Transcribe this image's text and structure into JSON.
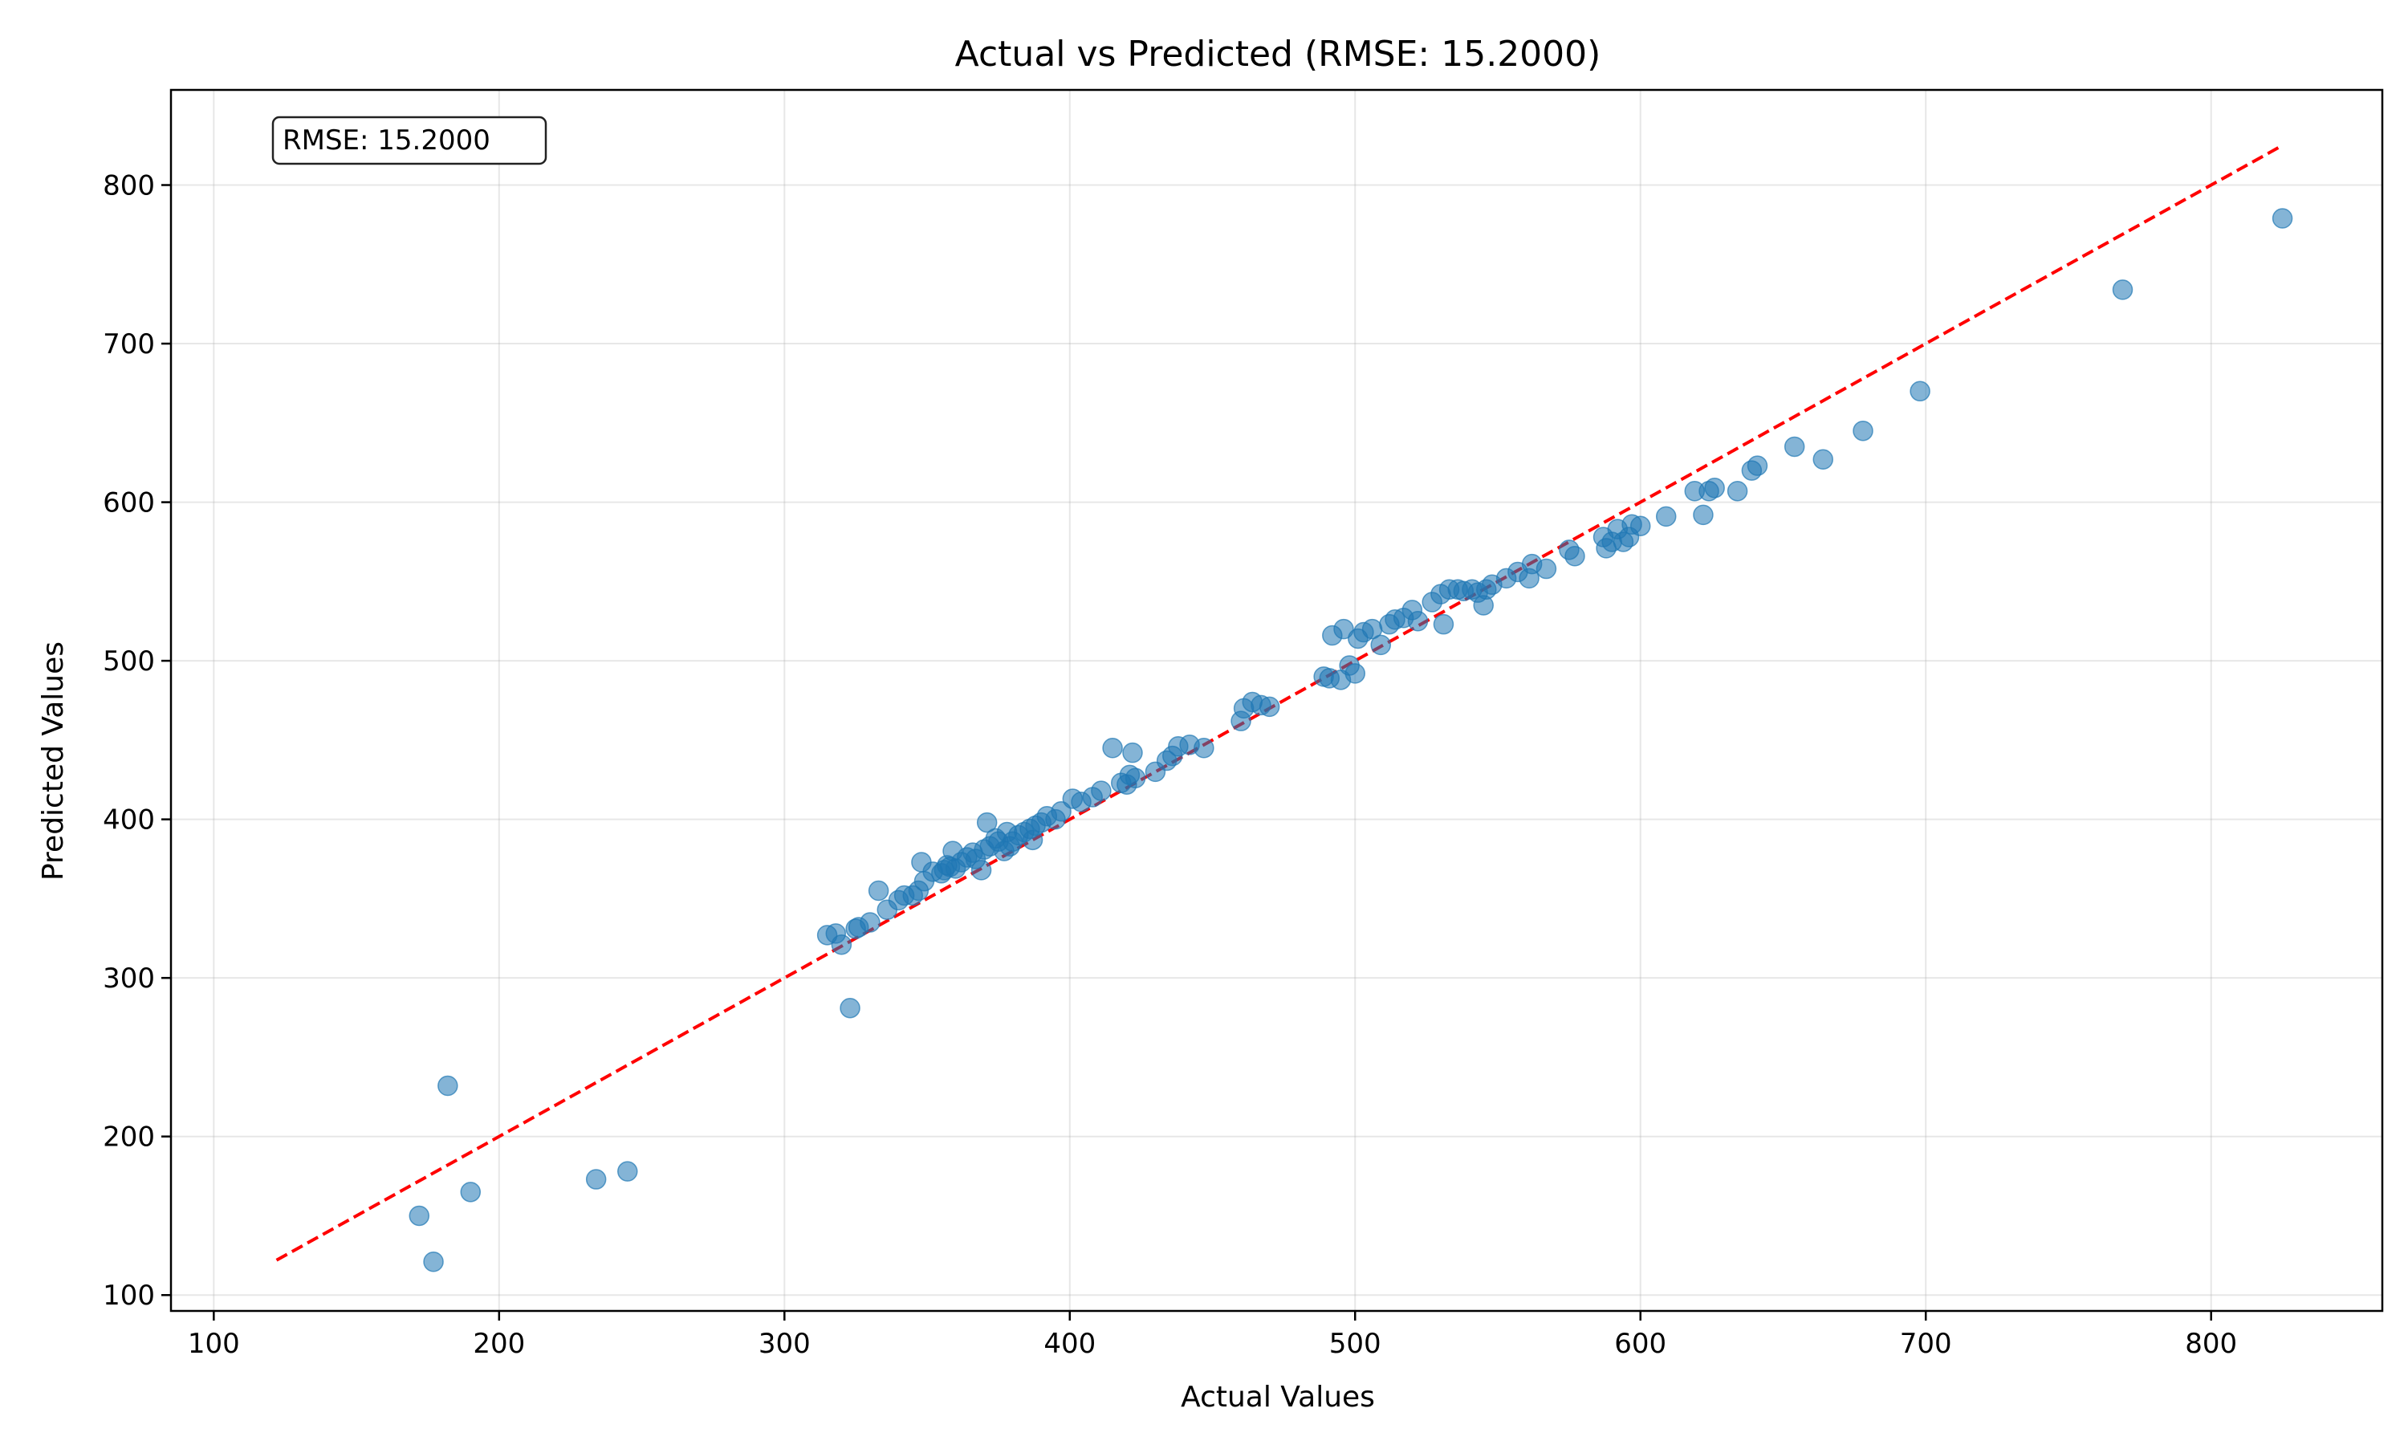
{
  "chart_data": {
    "type": "scatter",
    "title": "Actual vs Predicted (RMSE: 15.2000)",
    "xlabel": "Actual Values",
    "ylabel": "Predicted Values",
    "xlim": [
      85,
      860
    ],
    "ylim": [
      90,
      860
    ],
    "xticks": [
      100,
      200,
      300,
      400,
      500,
      600,
      700,
      800
    ],
    "yticks": [
      100,
      200,
      300,
      400,
      500,
      600,
      700,
      800
    ],
    "grid": true,
    "annotation": "RMSE: 15.2000",
    "colors": {
      "points": "#1f77b4",
      "reference_line": "#ff0000"
    },
    "reference_line": {
      "from": [
        122,
        122
      ],
      "to": [
        825,
        825
      ],
      "style": "dashed"
    },
    "points": [
      [
        172,
        150
      ],
      [
        177,
        121
      ],
      [
        182,
        232
      ],
      [
        190,
        165
      ],
      [
        234,
        173
      ],
      [
        245,
        178
      ],
      [
        315,
        327
      ],
      [
        318,
        328
      ],
      [
        320,
        321
      ],
      [
        323,
        281
      ],
      [
        325,
        331
      ],
      [
        326,
        332
      ],
      [
        330,
        335
      ],
      [
        333,
        355
      ],
      [
        336,
        343
      ],
      [
        340,
        349
      ],
      [
        342,
        352
      ],
      [
        345,
        352
      ],
      [
        347,
        355
      ],
      [
        348,
        373
      ],
      [
        349,
        361
      ],
      [
        352,
        367
      ],
      [
        355,
        366
      ],
      [
        356,
        368
      ],
      [
        357,
        371
      ],
      [
        358,
        370
      ],
      [
        359,
        380
      ],
      [
        360,
        369
      ],
      [
        362,
        373
      ],
      [
        364,
        376
      ],
      [
        366,
        379
      ],
      [
        367,
        375
      ],
      [
        369,
        368
      ],
      [
        370,
        381
      ],
      [
        371,
        398
      ],
      [
        372,
        383
      ],
      [
        374,
        388
      ],
      [
        375,
        386
      ],
      [
        377,
        380
      ],
      [
        378,
        392
      ],
      [
        379,
        383
      ],
      [
        380,
        386
      ],
      [
        382,
        390
      ],
      [
        384,
        392
      ],
      [
        386,
        394
      ],
      [
        387,
        387
      ],
      [
        388,
        396
      ],
      [
        390,
        398
      ],
      [
        392,
        402
      ],
      [
        395,
        400
      ],
      [
        397,
        405
      ],
      [
        401,
        413
      ],
      [
        404,
        411
      ],
      [
        408,
        414
      ],
      [
        411,
        418
      ],
      [
        415,
        445
      ],
      [
        418,
        423
      ],
      [
        420,
        422
      ],
      [
        421,
        428
      ],
      [
        422,
        442
      ],
      [
        423,
        426
      ],
      [
        430,
        430
      ],
      [
        434,
        437
      ],
      [
        436,
        440
      ],
      [
        438,
        446
      ],
      [
        442,
        447
      ],
      [
        447,
        445
      ],
      [
        460,
        462
      ],
      [
        461,
        470
      ],
      [
        464,
        474
      ],
      [
        467,
        472
      ],
      [
        470,
        471
      ],
      [
        489,
        490
      ],
      [
        491,
        489
      ],
      [
        492,
        516
      ],
      [
        495,
        488
      ],
      [
        496,
        520
      ],
      [
        498,
        497
      ],
      [
        500,
        492
      ],
      [
        501,
        514
      ],
      [
        503,
        518
      ],
      [
        506,
        520
      ],
      [
        509,
        510
      ],
      [
        512,
        523
      ],
      [
        514,
        526
      ],
      [
        517,
        527
      ],
      [
        520,
        532
      ],
      [
        522,
        525
      ],
      [
        527,
        537
      ],
      [
        530,
        542
      ],
      [
        531,
        523
      ],
      [
        533,
        545
      ],
      [
        536,
        545
      ],
      [
        538,
        544
      ],
      [
        541,
        545
      ],
      [
        543,
        543
      ],
      [
        545,
        535
      ],
      [
        546,
        545
      ],
      [
        548,
        548
      ],
      [
        553,
        552
      ],
      [
        557,
        556
      ],
      [
        561,
        552
      ],
      [
        562,
        561
      ],
      [
        567,
        558
      ],
      [
        575,
        570
      ],
      [
        577,
        566
      ],
      [
        587,
        578
      ],
      [
        588,
        571
      ],
      [
        590,
        575
      ],
      [
        592,
        583
      ],
      [
        594,
        575
      ],
      [
        596,
        578
      ],
      [
        597,
        586
      ],
      [
        600,
        585
      ],
      [
        609,
        591
      ],
      [
        619,
        607
      ],
      [
        622,
        592
      ],
      [
        624,
        607
      ],
      [
        626,
        609
      ],
      [
        634,
        607
      ],
      [
        639,
        620
      ],
      [
        641,
        623
      ],
      [
        654,
        635
      ],
      [
        664,
        627
      ],
      [
        678,
        645
      ],
      [
        698,
        670
      ],
      [
        769,
        734
      ],
      [
        825,
        779
      ]
    ]
  }
}
